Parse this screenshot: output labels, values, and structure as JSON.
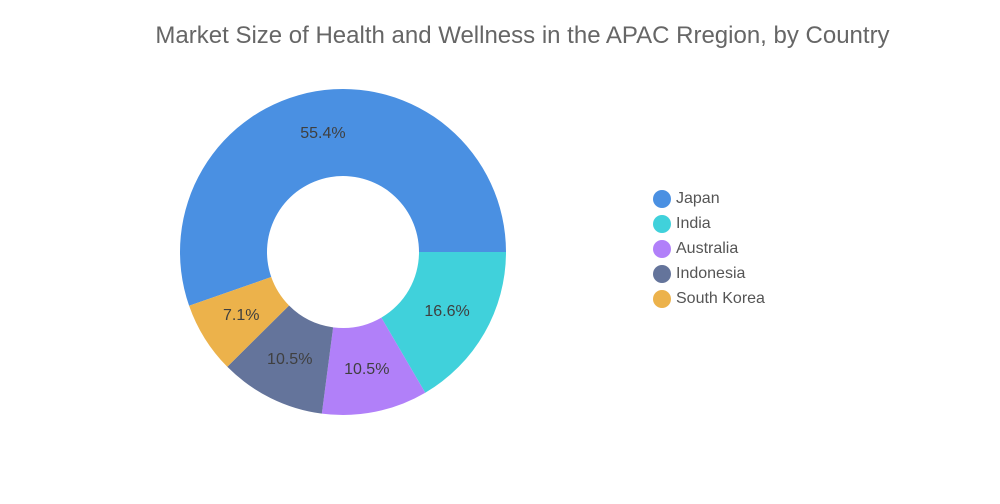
{
  "chart_data": {
    "type": "pie",
    "donut": true,
    "title": "Market Size of Health and Wellness in the APAC Rregion, by Country",
    "categories": [
      "Japan",
      "India",
      "Australia",
      "Indonesia",
      "South Korea"
    ],
    "values": [
      55.4,
      16.6,
      10.5,
      10.5,
      7.1
    ],
    "labels": [
      "55.4%",
      "16.6%",
      "10.5%",
      "10.5%",
      "7.1%"
    ],
    "colors": [
      "#4a90e2",
      "#40d1db",
      "#b180f9",
      "#64749b",
      "#ecb24b"
    ],
    "unit": "%",
    "legend_position": "right"
  }
}
